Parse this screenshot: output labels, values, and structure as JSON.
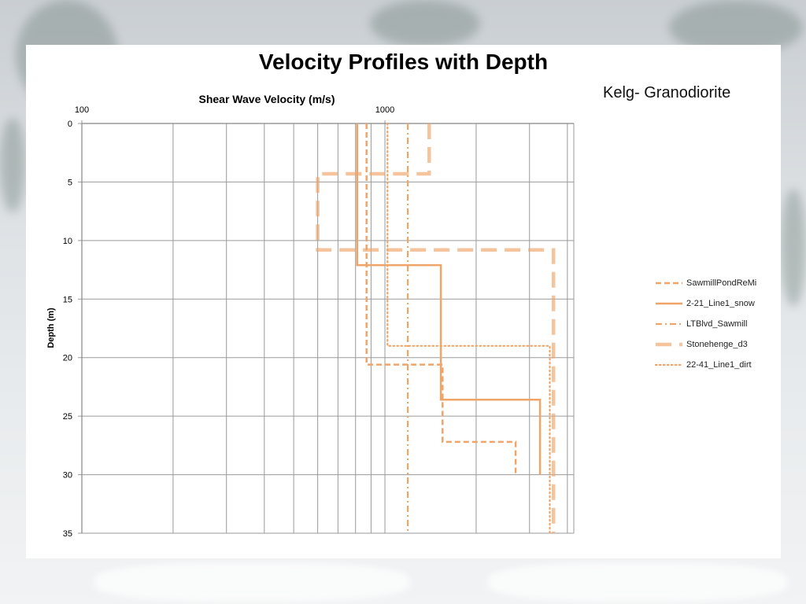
{
  "slide": {
    "title": "Velocity Profiles with Depth",
    "subtitle": "Kelg- Granodiorite"
  },
  "chart_data": {
    "type": "line",
    "xlabel": "Shear Wave Velocity (m/s)",
    "ylabel": "Depth (m)",
    "x_scale": "log",
    "xlim": [
      100,
      4200
    ],
    "ylim": [
      0,
      35
    ],
    "y_inverted": true,
    "x_axis_position": "top",
    "x_ticks": [
      100,
      1000
    ],
    "y_ticks": [
      0,
      5,
      10,
      15,
      20,
      25,
      30,
      35
    ],
    "grid": true,
    "legend_position": "right",
    "color": "#F0A468",
    "series": [
      {
        "name": "SawmillPondReMi",
        "style": "dashed",
        "points": [
          [
            870,
            0
          ],
          [
            870,
            20.6
          ],
          [
            1550,
            20.6
          ],
          [
            1550,
            27.2
          ],
          [
            2700,
            27.2
          ],
          [
            2700,
            30
          ]
        ]
      },
      {
        "name": "2-21_Line1_snow",
        "style": "solid",
        "points": [
          [
            810,
            0
          ],
          [
            810,
            12.1
          ],
          [
            1530,
            12.1
          ],
          [
            1530,
            23.6
          ],
          [
            3250,
            23.6
          ],
          [
            3250,
            30
          ]
        ]
      },
      {
        "name": "LTBlvd_Sawmill",
        "style": "dash-dot",
        "points": [
          [
            1190,
            0
          ],
          [
            1190,
            35
          ]
        ]
      },
      {
        "name": "Stonehenge_d3",
        "style": "long-dash",
        "points": [
          [
            1400,
            0
          ],
          [
            1400,
            4.3
          ],
          [
            600,
            4.3
          ],
          [
            600,
            10.8
          ],
          [
            3600,
            10.8
          ],
          [
            3600,
            35
          ]
        ]
      },
      {
        "name": "22-41_Line1_dirt",
        "style": "dotted",
        "points": [
          [
            1020,
            0
          ],
          [
            1020,
            19
          ],
          [
            3500,
            19
          ],
          [
            3500,
            35
          ]
        ]
      }
    ]
  }
}
